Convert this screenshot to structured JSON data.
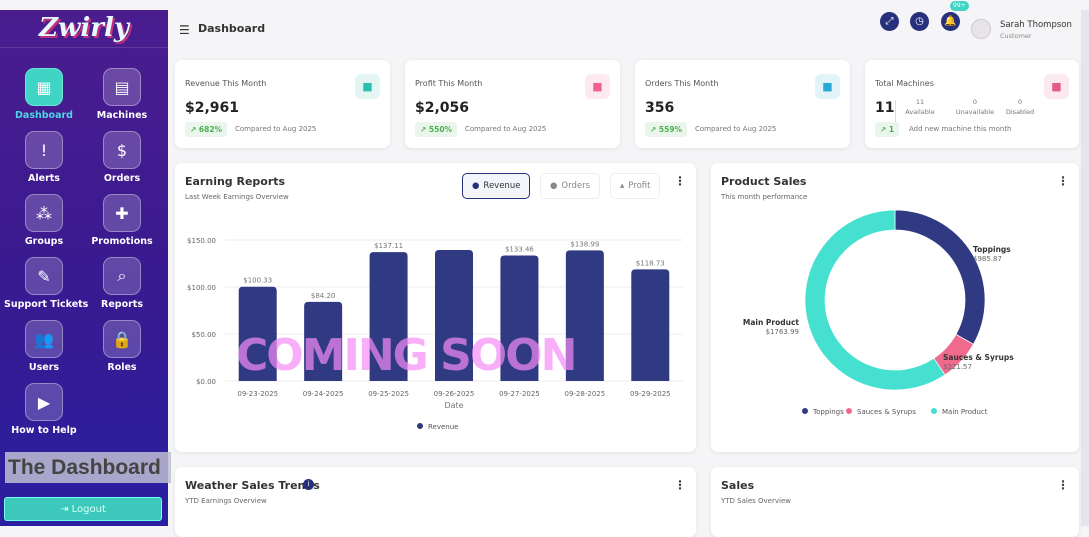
{
  "app": {
    "logo": "Zwirly",
    "caption": "The Dashboard",
    "logout": "Logout"
  },
  "sidebar": {
    "items": [
      {
        "label": "Dashboard",
        "icon": "dashboard-icon",
        "glyph": "▦",
        "active": true
      },
      {
        "label": "Machines",
        "icon": "machine-icon",
        "glyph": "▤"
      },
      {
        "label": "Alerts",
        "icon": "alert-icon",
        "glyph": "!"
      },
      {
        "label": "Orders",
        "icon": "invoice-icon",
        "glyph": "$"
      },
      {
        "label": "Groups",
        "icon": "groups-icon",
        "glyph": "⁂"
      },
      {
        "label": "Promotions",
        "icon": "gift-icon",
        "glyph": "✚"
      },
      {
        "label": "Support Tickets",
        "icon": "ticket-icon",
        "glyph": "✎"
      },
      {
        "label": "Reports",
        "icon": "report-search-icon",
        "glyph": "⌕"
      },
      {
        "label": "Users",
        "icon": "users-icon",
        "glyph": "👥"
      },
      {
        "label": "Roles",
        "icon": "user-lock-icon",
        "glyph": "🔒"
      },
      {
        "label": "How to Help",
        "icon": "video-play-icon",
        "glyph": "▶"
      }
    ]
  },
  "header": {
    "title": "Dashboard",
    "notifications": "99+",
    "user_name": "Sarah Thompson",
    "user_role": "Customer"
  },
  "kpis": [
    {
      "title": "Revenue This Month",
      "value": "$2,961",
      "trend": "682%",
      "note": "Compared to Aug 2025",
      "icon": "money-bag-icon",
      "color": "#2bbfae"
    },
    {
      "title": "Profit This Month",
      "value": "$2,056",
      "trend": "550%",
      "note": "Compared to Aug 2025",
      "icon": "hand-money-icon",
      "color": "#f06292"
    },
    {
      "title": "Orders This Month",
      "value": "356",
      "trend": "559%",
      "note": "Compared to Aug 2025",
      "icon": "cupcake-icon",
      "color": "#29a8d8"
    },
    {
      "title": "Total Machines",
      "value": "11",
      "trend": "1",
      "note": "Add new machine this month",
      "icon": "machine-icon",
      "color": "#e05a8a",
      "breakdown": [
        {
          "n": "11",
          "label": "Available"
        },
        {
          "n": "0",
          "label": "Unavailable"
        },
        {
          "n": "0",
          "label": "Disabled"
        }
      ]
    }
  ],
  "earning": {
    "title": "Earning Reports",
    "subtitle": "Last Week Earnings Overview",
    "tabs": [
      "Revenue",
      "Orders",
      "Profit"
    ]
  },
  "product_sales": {
    "title": "Product Sales",
    "subtitle": "This month performance"
  },
  "weather": {
    "title": "Weather Sales Trends",
    "subtitle": "YTD Earnings Overview"
  },
  "sales": {
    "title": "Sales",
    "subtitle": "YTD Sales Overview"
  },
  "watermark": "COMING SOON",
  "chart_data": [
    {
      "type": "bar",
      "xlabel": "Date",
      "ylabel": "",
      "ylim": [
        0,
        150
      ],
      "yticks": [
        "$0.00",
        "$50.00",
        "$100.00",
        "$150.00"
      ],
      "categories": [
        "09-23-2025",
        "09-24-2025",
        "09-25-2025",
        "09-26-2025",
        "09-27-2025",
        "09-28-2025",
        "09-29-2025"
      ],
      "series": [
        {
          "name": "Revenue",
          "values": [
            100.33,
            84.2,
            137.11,
            139.4,
            133.46,
            138.99,
            118.73
          ],
          "labels": [
            "$100.33",
            "$84.20",
            "$137.11",
            "",
            "$133.46",
            "$138.99",
            "$118.73"
          ],
          "color": "#2f3a82"
        }
      ],
      "legend": "bottom",
      "grid": true
    },
    {
      "type": "pie",
      "donut": true,
      "slices": [
        {
          "name": "Toppings",
          "value": 985.87,
          "label": "$985.87",
          "color": "#2f3a82"
        },
        {
          "name": "Sauces & Syrups",
          "value": 221.57,
          "label": "$221.57",
          "color": "#f06a8e"
        },
        {
          "name": "Main Product",
          "value": 1763.99,
          "label": "$1763.99",
          "color": "#45e0d0"
        }
      ],
      "legend": "bottom"
    }
  ]
}
